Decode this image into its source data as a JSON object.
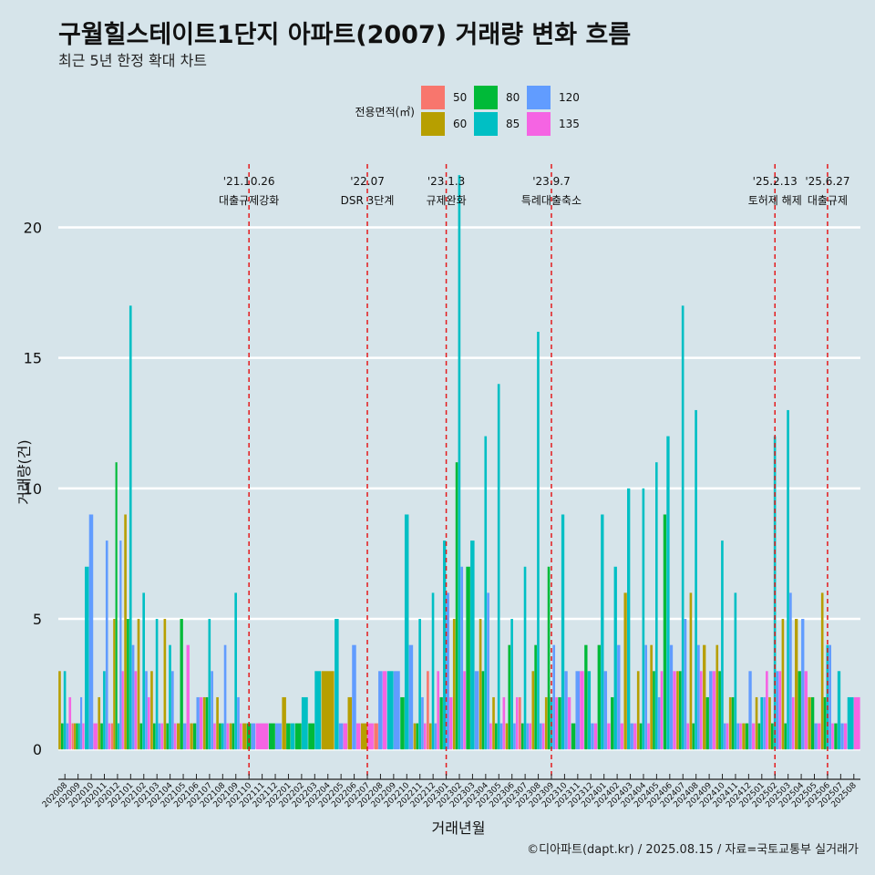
{
  "chart_data": {
    "type": "bar",
    "title": "구월힐스테이트1단지 아파트(2007) 거래량 변화 흐름",
    "subtitle": "최근 5년 한정 확대 차트",
    "xlabel": "거래년월",
    "ylabel": "거래량(건)",
    "ylim": [
      -0.9,
      22.6
    ],
    "yticks": [
      0,
      5,
      10,
      15,
      20
    ],
    "caption": "©디아파트(dapt.kr) / 2025.08.15 / 자료=국토교통부 실거래가",
    "legend": {
      "title": "전용면적(㎡)",
      "position": "top",
      "entries": [
        {
          "name": "50",
          "color": "#F8766D"
        },
        {
          "name": "60",
          "color": "#B79F00"
        },
        {
          "name": "80",
          "color": "#00BA38"
        },
        {
          "name": "85",
          "color": "#00BFC4"
        },
        {
          "name": "120",
          "color": "#619CFF"
        },
        {
          "name": "135",
          "color": "#F564E3"
        }
      ]
    },
    "months": [
      "202008",
      "202009",
      "202010",
      "202011",
      "202012",
      "202101",
      "202102",
      "202103",
      "202104",
      "202105",
      "202106",
      "202107",
      "202108",
      "202109",
      "202110",
      "202111",
      "202112",
      "202201",
      "202202",
      "202203",
      "202204",
      "202205",
      "202206",
      "202207",
      "202208",
      "202209",
      "202210",
      "202211",
      "202212",
      "202301",
      "202302",
      "202303",
      "202304",
      "202305",
      "202306",
      "202307",
      "202308",
      "202309",
      "202310",
      "202311",
      "202312",
      "202401",
      "202402",
      "202403",
      "202404",
      "202405",
      "202406",
      "202407",
      "202408",
      "202409",
      "202410",
      "202411",
      "202412",
      "202501",
      "202502",
      "202503",
      "202504",
      "202505",
      "202506",
      "202507",
      "202508"
    ],
    "series": [
      {
        "name": "50",
        "values": [
          0,
          1,
          0,
          0,
          1,
          0,
          0,
          0,
          0,
          0,
          0,
          0,
          0,
          0,
          0,
          0,
          0,
          0,
          0,
          0,
          0,
          0,
          0,
          0,
          1,
          0,
          0,
          0,
          3,
          0,
          0,
          0,
          0,
          0,
          0,
          2,
          0,
          0,
          0,
          0,
          0,
          0,
          0,
          0,
          0,
          0,
          0,
          0,
          0,
          0,
          0,
          0,
          0,
          0,
          0,
          0,
          0,
          0,
          0,
          0,
          0
        ]
      },
      {
        "name": "60",
        "values": [
          3,
          1,
          0,
          2,
          5,
          9,
          5,
          3,
          5,
          1,
          1,
          2,
          2,
          1,
          1,
          0,
          0,
          2,
          0,
          0,
          3,
          0,
          2,
          1,
          0,
          0,
          0,
          1,
          1,
          0,
          5,
          0,
          5,
          2,
          1,
          0,
          3,
          2,
          0,
          0,
          0,
          0,
          0,
          6,
          3,
          4,
          0,
          3,
          6,
          4,
          4,
          2,
          1,
          2,
          2,
          5,
          5,
          2,
          6,
          0,
          0
        ]
      },
      {
        "name": "80",
        "values": [
          1,
          1,
          0,
          1,
          11,
          5,
          1,
          1,
          1,
          5,
          1,
          2,
          1,
          1,
          1,
          0,
          1,
          1,
          1,
          1,
          0,
          0,
          0,
          0,
          0,
          0,
          2,
          1,
          0,
          2,
          11,
          7,
          3,
          1,
          4,
          1,
          4,
          7,
          2,
          1,
          4,
          4,
          2,
          0,
          1,
          3,
          9,
          3,
          1,
          2,
          3,
          2,
          1,
          1,
          1,
          1,
          3,
          2,
          2,
          1,
          0
        ]
      },
      {
        "name": "85",
        "values": [
          3,
          1,
          7,
          3,
          1,
          17,
          6,
          5,
          4,
          0,
          0,
          5,
          1,
          6,
          0,
          0,
          0,
          1,
          2,
          3,
          0,
          5,
          0,
          0,
          0,
          3,
          9,
          5,
          6,
          8,
          22,
          8,
          12,
          14,
          5,
          7,
          16,
          2,
          9,
          0,
          3,
          9,
          7,
          10,
          10,
          11,
          12,
          17,
          13,
          0,
          8,
          6,
          0,
          2,
          12,
          13,
          0,
          0,
          4,
          3,
          2
        ]
      },
      {
        "name": "120",
        "values": [
          1,
          2,
          9,
          8,
          8,
          4,
          3,
          1,
          3,
          1,
          2,
          3,
          4,
          2,
          1,
          0,
          1,
          0,
          0,
          0,
          0,
          1,
          4,
          0,
          3,
          3,
          4,
          2,
          1,
          6,
          7,
          3,
          6,
          1,
          1,
          1,
          1,
          4,
          3,
          3,
          1,
          3,
          4,
          1,
          4,
          2,
          4,
          5,
          4,
          3,
          1,
          1,
          3,
          2,
          3,
          6,
          5,
          1,
          4,
          1,
          0
        ]
      },
      {
        "name": "135",
        "values": [
          2,
          1,
          1,
          1,
          3,
          3,
          2,
          1,
          1,
          4,
          2,
          1,
          1,
          1,
          0,
          1,
          0,
          0,
          0,
          0,
          0,
          1,
          1,
          1,
          3,
          0,
          0,
          1,
          3,
          2,
          3,
          0,
          1,
          2,
          2,
          1,
          1,
          2,
          2,
          3,
          1,
          1,
          1,
          1,
          1,
          3,
          3,
          1,
          3,
          3,
          1,
          1,
          1,
          3,
          3,
          2,
          3,
          1,
          1,
          1,
          2
        ]
      }
    ],
    "events": [
      {
        "line1": "'21.10.26",
        "line2": "대출규제강화",
        "month": "202110"
      },
      {
        "line1": "'22.07",
        "line2": "DSR 3단계",
        "month": "202207"
      },
      {
        "line1": "'23.1.3",
        "line2": "규제완화",
        "month": "202301"
      },
      {
        "line1": "'23.9.7",
        "line2": "특례대출축소",
        "month": "202309"
      },
      {
        "line1": "'25.2.13",
        "line2": "토허제 해제",
        "month": "202502"
      },
      {
        "line1": "'25.6.27",
        "line2": "대출규제",
        "month": "202506"
      }
    ]
  }
}
